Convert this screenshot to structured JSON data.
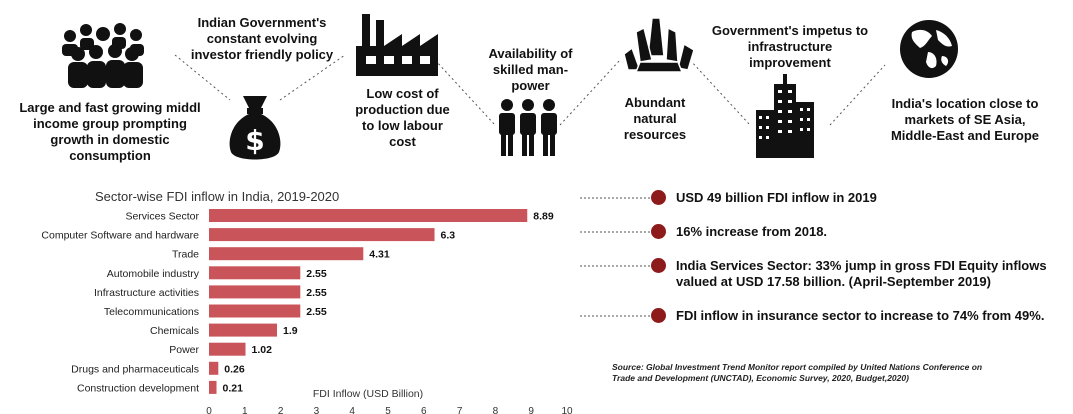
{
  "features": [
    {
      "text": "Large and fast growing middl\nincome group prompting\ngrowth in domestic\nconsumption",
      "icon": "crowd-icon"
    },
    {
      "text": "Indian Government's\nconstant evolving\ninvestor friendly policy",
      "icon": "money-bag-icon"
    },
    {
      "text": "Low cost of\nproduction due\nto low labour\ncost",
      "icon": "factory-icon"
    },
    {
      "text": "Availability of\nskilled man-\npower",
      "icon": "workers-icon"
    },
    {
      "text": "Abundant\nnatural\nresources",
      "icon": "crystals-icon"
    },
    {
      "text": "Government's impetus to\ninfrastructure\nimprovement",
      "icon": "skyscraper-icon"
    },
    {
      "text": "India's location close to\nmarkets of SE Asia,\nMiddle-East and Europe",
      "icon": "globe-icon"
    }
  ],
  "money_symbol": "$",
  "chart_data": {
    "type": "bar",
    "orientation": "horizontal",
    "title": "Sector-wise FDI inflow in India, 2019-2020",
    "categories": [
      "Services Sector",
      "Computer Software and hardware",
      "Trade",
      "Automobile industry",
      "Infrastructure activities",
      "Telecommunications",
      "Chemicals",
      "Power",
      "Drugs and pharmaceuticals",
      "Construction development"
    ],
    "values": [
      8.89,
      6.3,
      4.31,
      2.55,
      2.55,
      2.55,
      1.9,
      1.02,
      0.26,
      0.21
    ],
    "value_labels": [
      "8.89",
      "6.3",
      "4.31",
      "2.55",
      "2.55",
      "2.55",
      "1.9",
      "1.02",
      "0.26",
      "0.21"
    ],
    "xlabel": "FDI Inflow (USD Billion)",
    "xlim": [
      0,
      10
    ],
    "xticks": [
      "0",
      "1",
      "2",
      "3",
      "4",
      "5",
      "6",
      "7",
      "8",
      "9",
      "10"
    ],
    "bar_color": "#c9555a",
    "grid": false
  },
  "stats": [
    "USD 49 billion FDI inflow in 2019",
    "16% increase from 2018.",
    "India Services Sector: 33% jump in gross FDI Equity inflows\nvalued at USD 17.58 billion. (April-September 2019)",
    "FDI inflow in insurance sector to increase to 74% from 49%."
  ],
  "source": "Source: Global Investment Trend Monitor report compiled by United Nations Conference on\nTrade and Development (UNCTAD), Economic Survey, 2020, Budget,2020)",
  "colors": {
    "accent": "#8e1b1b",
    "bar": "#c9555a",
    "icon": "#111111"
  }
}
